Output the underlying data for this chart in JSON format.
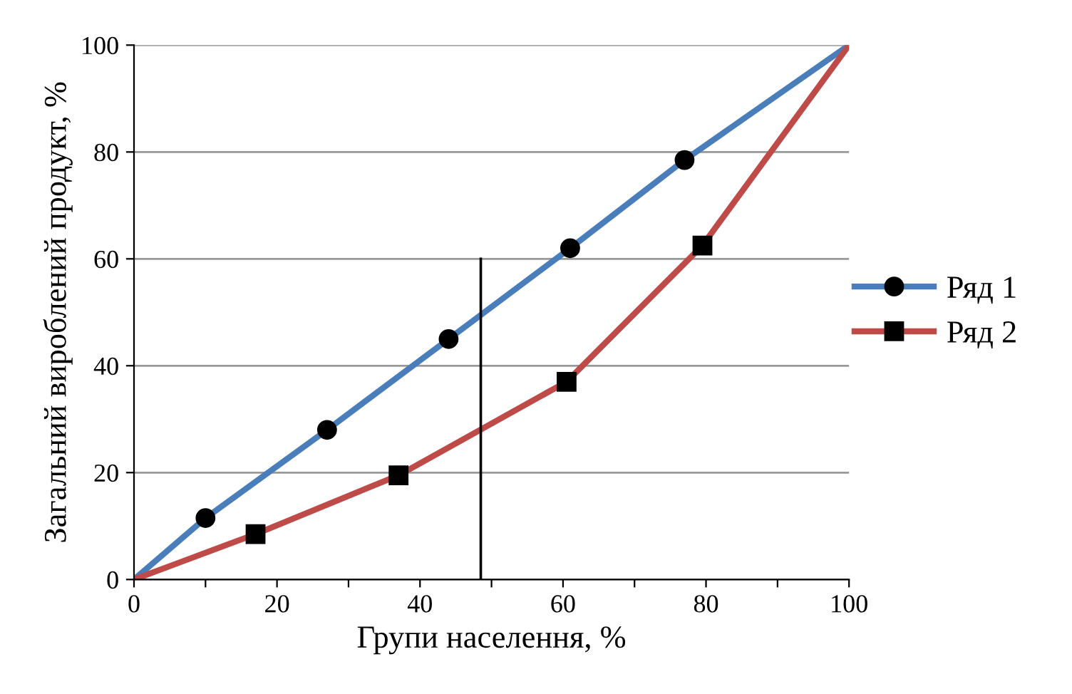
{
  "chart_data": {
    "type": "line",
    "xlabel": "Групи населення, %",
    "ylabel": "Загальний вироблений продукт, %",
    "xlim": [
      0,
      100
    ],
    "ylim": [
      0,
      100
    ],
    "xticks": [
      0,
      {
        "value": 10,
        "label": null
      },
      20,
      {
        "value": 30,
        "label": null
      },
      40,
      {
        "value": 50,
        "label": null
      },
      60,
      {
        "value": 70,
        "label": null
      },
      80,
      {
        "value": 90,
        "label": null
      },
      100
    ],
    "yticks": [
      0,
      20,
      40,
      60,
      80,
      100
    ],
    "grid": "y",
    "legend": "right",
    "series": [
      {
        "name": "Ряд 1",
        "color": "#4a7ebb",
        "marker": "circle",
        "x": [
          0,
          10,
          27,
          44,
          61,
          77,
          100
        ],
        "values": [
          0,
          11.5,
          28,
          45,
          62,
          78.5,
          100
        ]
      },
      {
        "name": "Ряд 2",
        "color": "#be4b48",
        "marker": "square",
        "x": [
          0,
          17,
          37,
          60.5,
          79.5,
          100
        ],
        "values": [
          0,
          8.5,
          19.5,
          37,
          62.5,
          100
        ]
      },
      {
        "color": "#000000",
        "marker": "none",
        "x": [
          48.5,
          48.5
        ],
        "values": [
          0,
          60
        ]
      }
    ]
  }
}
